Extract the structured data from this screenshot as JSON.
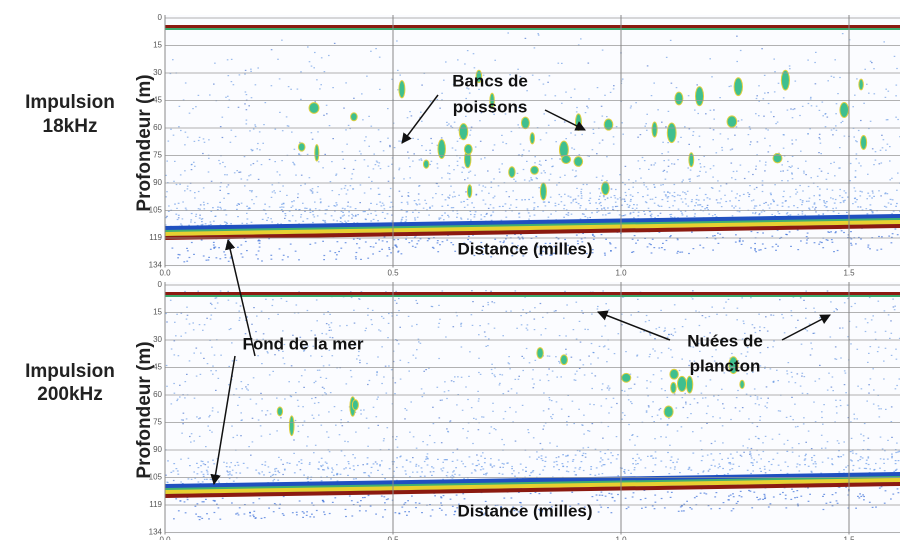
{
  "panels": [
    {
      "label": [
        "Impulsion",
        "18kHz"
      ],
      "y_axis_label": "Profondeur (m)",
      "x_axis_label": "Distance (milles)",
      "depth_ticks": [
        "0",
        "15",
        "30",
        "45",
        "60",
        "75",
        "90",
        "105",
        "119",
        "134"
      ],
      "distance_ticks": [
        "0.0",
        "0.5",
        "1.0",
        "1.5"
      ]
    },
    {
      "label": [
        "Impulsion",
        "200kHz"
      ],
      "y_axis_label": "Profondeur (m)",
      "x_axis_label": "Distance (milles)",
      "depth_ticks": [
        "0",
        "15",
        "30",
        "45",
        "60",
        "75",
        "90",
        "105",
        "119",
        "134"
      ],
      "distance_ticks": [
        "0.0",
        "0.5",
        "1.0",
        "1.5"
      ]
    }
  ],
  "annotations": {
    "fish_schools": [
      "Bancs de",
      "poissons"
    ],
    "seabed": "Fond de la mer",
    "plankton": [
      "Nuées de",
      "plancton"
    ]
  }
}
